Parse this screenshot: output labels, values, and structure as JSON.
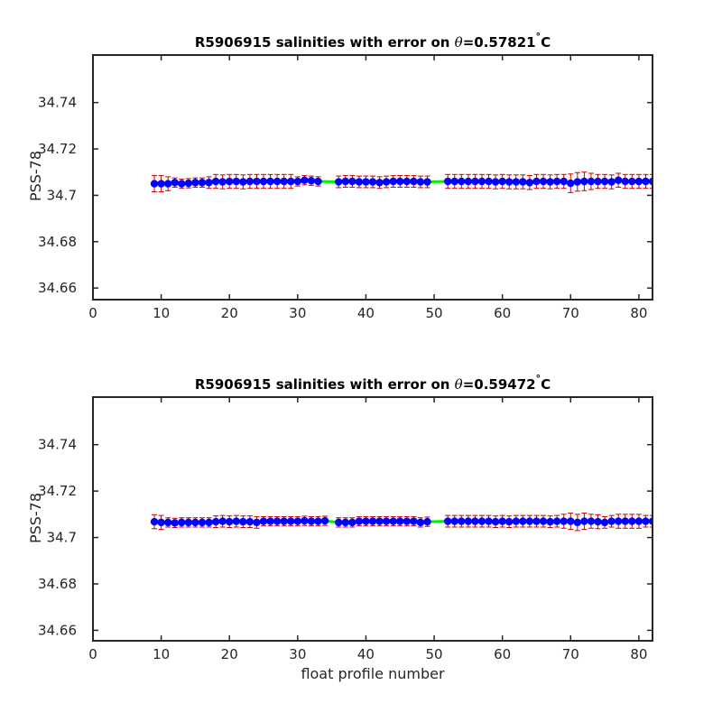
{
  "chart_data": [
    {
      "type": "scatter",
      "title_main": "R5906915 salinities with error on ",
      "title_symbol": "θ",
      "title_value": "=0.57821",
      "title_degree": "°",
      "title_unit": "C",
      "xlabel": "",
      "ylabel": "PSS-78",
      "xlim": [
        0,
        82
      ],
      "ylim": [
        34.655,
        34.7605
      ],
      "xticks": [
        0,
        10,
        20,
        30,
        40,
        50,
        60,
        70,
        80
      ],
      "yticks": [
        34.66,
        34.68,
        34.7,
        34.72,
        34.74
      ],
      "ytick_labels": [
        "34.66",
        "34.68",
        "34.7",
        "34.72",
        "34.74"
      ],
      "colors": {
        "points": "#0000ff",
        "errorbars": "#cc0000",
        "line": "#00ee00"
      },
      "series": [
        {
          "x": [
            9,
            10,
            11,
            12,
            13,
            14,
            15,
            16,
            17,
            18,
            19,
            20,
            21,
            22,
            23,
            24,
            25,
            26,
            27,
            28,
            29,
            30,
            31,
            32,
            33,
            36,
            37,
            38,
            39,
            40,
            41,
            42,
            43,
            44,
            45,
            46,
            47,
            48,
            49,
            52,
            53,
            54,
            55,
            56,
            57,
            58,
            59,
            60,
            61,
            62,
            63,
            64,
            65,
            66,
            67,
            68,
            69,
            70,
            71,
            72,
            73,
            74,
            75,
            76,
            77,
            78,
            79,
            80,
            81,
            82
          ],
          "y": [
            34.705,
            34.705,
            34.705,
            34.7055,
            34.705,
            34.7052,
            34.7055,
            34.7055,
            34.7055,
            34.706,
            34.7058,
            34.706,
            34.706,
            34.7058,
            34.706,
            34.706,
            34.706,
            34.706,
            34.706,
            34.706,
            34.706,
            34.706,
            34.7065,
            34.7063,
            34.706,
            34.7058,
            34.706,
            34.706,
            34.7058,
            34.7058,
            34.7058,
            34.7055,
            34.7058,
            34.706,
            34.706,
            34.706,
            34.706,
            34.7058,
            34.7058,
            34.706,
            34.706,
            34.706,
            34.706,
            34.706,
            34.706,
            34.706,
            34.7058,
            34.706,
            34.7058,
            34.7058,
            34.7058,
            34.7055,
            34.706,
            34.706,
            34.7058,
            34.706,
            34.706,
            34.7052,
            34.7058,
            34.706,
            34.706,
            34.706,
            34.706,
            34.7058,
            34.7065,
            34.706,
            34.706,
            34.706,
            34.706,
            34.706
          ],
          "err": [
            0.0035,
            0.0035,
            0.003,
            0.002,
            0.002,
            0.002,
            0.002,
            0.002,
            0.0025,
            0.003,
            0.003,
            0.003,
            0.003,
            0.003,
            0.003,
            0.003,
            0.003,
            0.003,
            0.003,
            0.003,
            0.003,
            0.002,
            0.002,
            0.002,
            0.002,
            0.0025,
            0.0025,
            0.0025,
            0.0025,
            0.0025,
            0.0025,
            0.0025,
            0.0025,
            0.0025,
            0.0025,
            0.0025,
            0.0025,
            0.0025,
            0.0025,
            0.003,
            0.003,
            0.003,
            0.003,
            0.003,
            0.003,
            0.003,
            0.003,
            0.003,
            0.003,
            0.003,
            0.003,
            0.003,
            0.003,
            0.003,
            0.003,
            0.003,
            0.003,
            0.004,
            0.004,
            0.004,
            0.0035,
            0.003,
            0.003,
            0.003,
            0.003,
            0.003,
            0.003,
            0.003,
            0.003,
            0.003
          ]
        }
      ]
    },
    {
      "type": "scatter",
      "title_main": "R5906915 salinities with error on ",
      "title_symbol": "θ",
      "title_value": "=0.59472",
      "title_degree": "°",
      "title_unit": "C",
      "xlabel": "float profile number",
      "ylabel": "PSS-78",
      "xlim": [
        0,
        82
      ],
      "ylim": [
        34.6555,
        34.7605
      ],
      "xticks": [
        0,
        10,
        20,
        30,
        40,
        50,
        60,
        70,
        80
      ],
      "yticks": [
        34.66,
        34.68,
        34.7,
        34.72,
        34.74
      ],
      "ytick_labels": [
        "34.66",
        "34.68",
        "34.7",
        "34.72",
        "34.74"
      ],
      "colors": {
        "points": "#0000ff",
        "errorbars": "#cc0000",
        "line": "#00ee00"
      },
      "series": [
        {
          "x": [
            9,
            10,
            11,
            12,
            13,
            14,
            15,
            16,
            17,
            18,
            19,
            20,
            21,
            22,
            23,
            24,
            25,
            26,
            27,
            28,
            29,
            30,
            31,
            32,
            33,
            34,
            36,
            37,
            38,
            39,
            40,
            41,
            42,
            43,
            44,
            45,
            46,
            47,
            48,
            49,
            52,
            53,
            54,
            55,
            56,
            57,
            58,
            59,
            60,
            61,
            62,
            63,
            64,
            65,
            66,
            67,
            68,
            69,
            70,
            71,
            72,
            73,
            74,
            75,
            76,
            77,
            78,
            79,
            80,
            81,
            82
          ],
          "y": [
            34.7068,
            34.7065,
            34.7065,
            34.7063,
            34.7065,
            34.7065,
            34.7065,
            34.7065,
            34.7065,
            34.7068,
            34.707,
            34.7068,
            34.707,
            34.7068,
            34.7068,
            34.7065,
            34.707,
            34.707,
            34.707,
            34.707,
            34.707,
            34.707,
            34.7072,
            34.707,
            34.707,
            34.7072,
            34.7065,
            34.7065,
            34.7065,
            34.707,
            34.707,
            34.707,
            34.707,
            34.707,
            34.707,
            34.707,
            34.707,
            34.707,
            34.7065,
            34.7068,
            34.707,
            34.707,
            34.707,
            34.707,
            34.707,
            34.707,
            34.707,
            34.7068,
            34.707,
            34.7068,
            34.707,
            34.707,
            34.707,
            34.707,
            34.707,
            34.7068,
            34.707,
            34.707,
            34.707,
            34.7065,
            34.707,
            34.707,
            34.7068,
            34.7065,
            34.707,
            34.707,
            34.707,
            34.707,
            34.707,
            34.707,
            34.707
          ],
          "err": [
            0.003,
            0.003,
            0.002,
            0.002,
            0.002,
            0.002,
            0.002,
            0.002,
            0.002,
            0.0025,
            0.0025,
            0.0025,
            0.0025,
            0.0025,
            0.0025,
            0.0025,
            0.002,
            0.002,
            0.002,
            0.002,
            0.002,
            0.002,
            0.002,
            0.002,
            0.002,
            0.002,
            0.002,
            0.002,
            0.002,
            0.002,
            0.002,
            0.002,
            0.002,
            0.002,
            0.002,
            0.002,
            0.002,
            0.002,
            0.002,
            0.002,
            0.0025,
            0.0025,
            0.0025,
            0.0025,
            0.0025,
            0.0025,
            0.0025,
            0.0025,
            0.0025,
            0.0025,
            0.0025,
            0.0025,
            0.0025,
            0.0025,
            0.0025,
            0.0025,
            0.0025,
            0.003,
            0.0035,
            0.0035,
            0.0035,
            0.003,
            0.003,
            0.0025,
            0.0025,
            0.003,
            0.003,
            0.003,
            0.003,
            0.0025,
            0.0025
          ]
        }
      ]
    }
  ]
}
